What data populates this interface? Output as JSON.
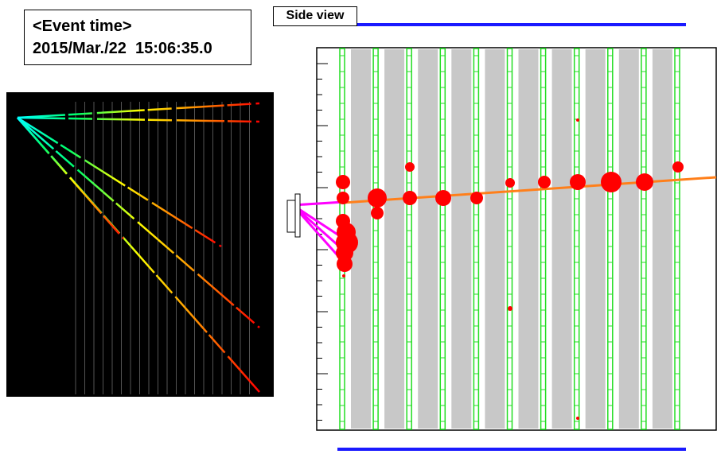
{
  "event_box": {
    "label": "<Event time>",
    "timestamp": "2015/Mar./22  15:06:35.0"
  },
  "side_view": {
    "label": "Side view"
  }
}
